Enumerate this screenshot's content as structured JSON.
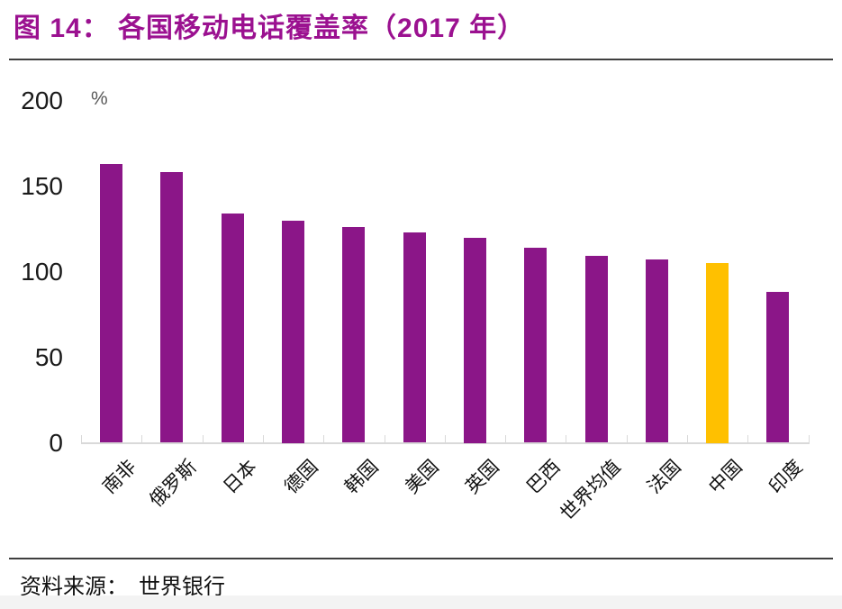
{
  "figure": {
    "title": "图 14： 各国移动电话覆盖率（2017 年）",
    "title_color": "#9b1190",
    "source_label": "资料来源：  世界银行"
  },
  "chart_data": {
    "type": "bar",
    "title": "各国移动电话覆盖率（2017 年）",
    "unit": "%",
    "categories": [
      "南非",
      "俄罗斯",
      "日本",
      "德国",
      "韩国",
      "美国",
      "英国",
      "巴西",
      "世界均值",
      "法国",
      "中国",
      "印度"
    ],
    "values": [
      163,
      158,
      134,
      130,
      126,
      123,
      120,
      114,
      109,
      107,
      105,
      88
    ],
    "ylim": [
      0,
      200
    ],
    "yticks": [
      0,
      50,
      100,
      150,
      200
    ],
    "ylabel": "",
    "xlabel": "",
    "grid": "off",
    "legend": "none",
    "bar_color": "#8b1688",
    "highlight_index": 10,
    "highlight_category": "中国",
    "highlight_color": "#ffc000",
    "axis_color": "#d9d9d9"
  }
}
